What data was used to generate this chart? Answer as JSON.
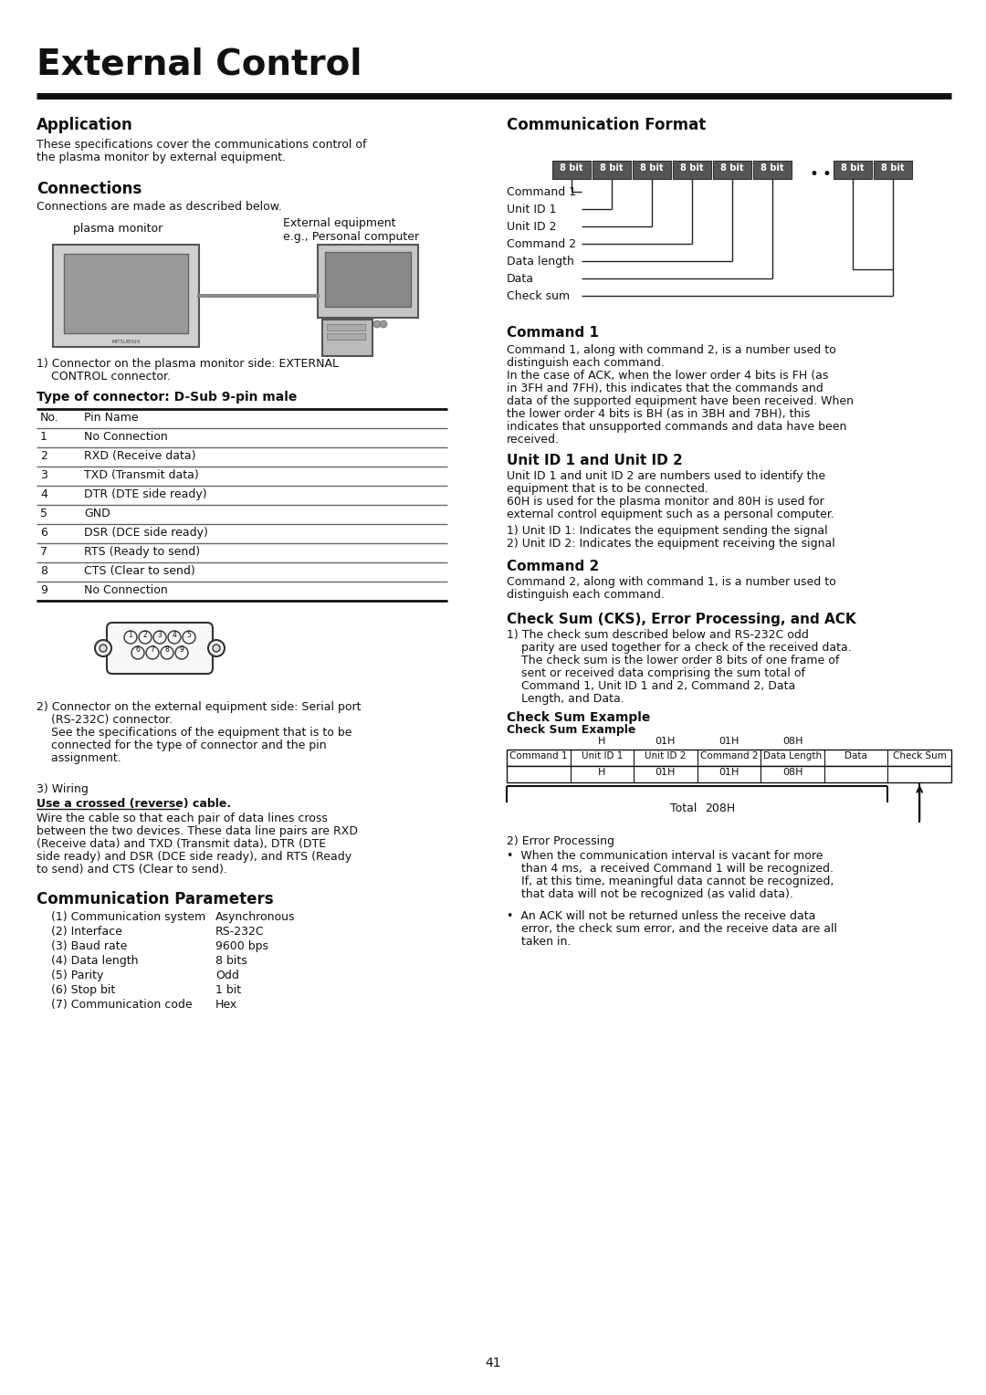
{
  "title": "External Control",
  "bg_color": "#ffffff",
  "page_number": "41",
  "application_title": "Application",
  "application_text1": "These specifications cover the communications control of",
  "application_text2": "the plasma monitor by external equipment.",
  "connections_title": "Connections",
  "connections_text": "Connections are made as described below.",
  "plasma_label": "plasma monitor",
  "external_label_1": "External equipment",
  "external_label_2": "e.g., Personal computer",
  "connector1_text1": "1) Connector on the plasma monitor side: EXTERNAL",
  "connector1_text2": "    CONTROL connector.",
  "connector_type_title": "Type of connector: D-Sub 9-pin male",
  "pin_headers": [
    "No.",
    "Pin Name"
  ],
  "pin_data": [
    [
      "1",
      "No Connection"
    ],
    [
      "2",
      "RXD (Receive data)"
    ],
    [
      "3",
      "TXD (Transmit data)"
    ],
    [
      "4",
      "DTR (DTE side ready)"
    ],
    [
      "5",
      "GND"
    ],
    [
      "6",
      "DSR (DCE side ready)"
    ],
    [
      "7",
      "RTS (Ready to send)"
    ],
    [
      "8",
      "CTS (Clear to send)"
    ],
    [
      "9",
      "No Connection"
    ]
  ],
  "connector2_text1": "2) Connector on the external equipment side: Serial port",
  "connector2_text2": "    (RS-232C) connector.",
  "connector2_text3": "    See the specifications of the equipment that is to be",
  "connector2_text4": "    connected for the type of connector and the pin",
  "connector2_text5": "    assignment.",
  "wiring_label": "3) Wiring",
  "wiring_underline": "Use a crossed (reverse) cable.",
  "wiring_text1": "Wire the cable so that each pair of data lines cross",
  "wiring_text2": "between the two devices. These data line pairs are RXD",
  "wiring_text3": "(Receive data) and TXD (Transmit data), DTR (DTE",
  "wiring_text4": "side ready) and DSR (DCE side ready), and RTS (Ready",
  "wiring_text5": "to send) and CTS (Clear to send).",
  "comm_params_title": "Communication Parameters",
  "comm_params": [
    [
      "(1) Communication system",
      "Asynchronous"
    ],
    [
      "(2) Interface",
      "RS-232C"
    ],
    [
      "(3) Baud rate",
      "9600 bps"
    ],
    [
      "(4) Data length",
      "8 bits"
    ],
    [
      "(5) Parity",
      "Odd"
    ],
    [
      "(6) Stop bit",
      "1 bit"
    ],
    [
      "(7) Communication code",
      "Hex"
    ]
  ],
  "comm_format_title": "Communication Format",
  "bit_labels": [
    "8 bit",
    "8 bit",
    "8 bit",
    "8 bit",
    "8 bit",
    "8 bit",
    "•",
    "8 bit",
    "8 bit"
  ],
  "format_labels": [
    "Command 1",
    "Unit ID 1",
    "Unit ID 2",
    "Command 2",
    "Data length",
    "Data",
    "Check sum"
  ],
  "format_line_boxes": [
    0,
    1,
    2,
    3,
    4,
    7,
    8
  ],
  "cmd1_title": "Command 1",
  "cmd1_text1": "Command 1, along with command 2, is a number used to",
  "cmd1_text2": "distinguish each command.",
  "cmd1_text3": "In the case of ACK, when the lower order 4 bits is FH (as",
  "cmd1_text4": "in 3FH and 7FH), this indicates that the commands and",
  "cmd1_text5": "data of the supported equipment have been received. When",
  "cmd1_text6": "the lower order 4 bits is BH (as in 3BH and 7BH), this",
  "cmd1_text7": "indicates that unsupported commands and data have been",
  "cmd1_text8": "received.",
  "uid_title": "Unit ID 1 and Unit ID 2",
  "uid_text1": "Unit ID 1 and unit ID 2 are numbers used to identify the",
  "uid_text2": "equipment that is to be connected.",
  "uid_text3": "60H is used for the plasma monitor and 80H is used for",
  "uid_text4": "external control equipment such as a personal computer.",
  "uid_item1": "1) Unit ID 1: Indicates the equipment sending the signal",
  "uid_item2": "2) Unit ID 2: Indicates the equipment receiving the signal",
  "cmd2_title": "Command 2",
  "cmd2_text1": "Command 2, along with command 1, is a number used to",
  "cmd2_text2": "distinguish each command.",
  "cksum_title": "Check Sum (CKS), Error Processing, and ACK",
  "cksum_text1": "1) The check sum described below and RS-232C odd",
  "cksum_text2": "    parity are used together for a check of the received data.",
  "cksum_text3": "    The check sum is the lower order 8 bits of one frame of",
  "cksum_text4": "    sent or received data comprising the sum total of",
  "cksum_text5": "    Command 1, Unit ID 1 and 2, Command 2, Data",
  "cksum_text6": "    Length, and Data.",
  "cksum_ex_title1": "Check Sum Example",
  "cksum_ex_title2": "Check Sum Example",
  "cksum_col_headers": [
    "Command 1",
    "Unit ID 1",
    "Unit ID 2",
    "Command 2",
    "Data Length",
    "Data",
    "Check Sum"
  ],
  "cksum_col_values": [
    "",
    "H",
    "01H",
    "01H",
    "08H",
    "",
    ""
  ],
  "cksum_total_label": "Total",
  "cksum_total_value": "208H",
  "error2_label": "2) Error Processing",
  "error_b1_1": "•  When the communication interval is vacant for more",
  "error_b1_2": "    than 4 ms,  a received Command 1 will be recognized.",
  "error_b1_3": "    If, at this time, meaningful data cannot be recognized,",
  "error_b1_4": "    that data will not be recognized (as valid data).",
  "error_b2_1": "•  An ACK will not be returned unless the receive data",
  "error_b2_2": "    error, the check sum error, and the receive data are all",
  "error_b2_3": "    taken in."
}
